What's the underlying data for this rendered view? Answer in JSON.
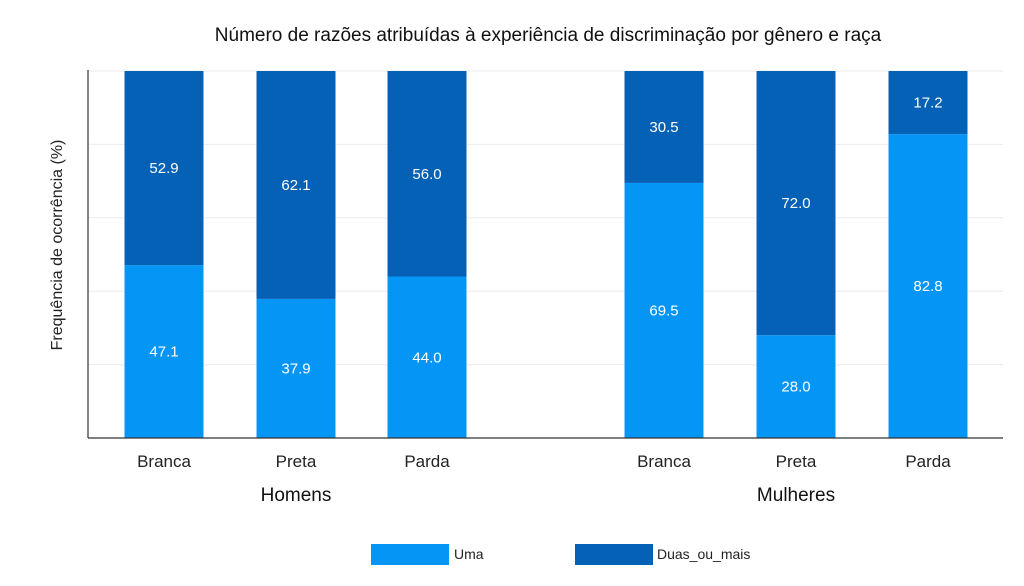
{
  "chart_data": {
    "type": "bar",
    "stacked": true,
    "title": "Número de razões atribuídas à experiência de discriminação por gênero e raça",
    "ylabel": "Frequência de ocorrência (%)",
    "xlabel": "",
    "ylim": [
      0,
      100
    ],
    "grid": true,
    "legend_position": "bottom",
    "groups": [
      "Homens",
      "Mulheres"
    ],
    "categories": [
      {
        "label": "Branca",
        "group": 0
      },
      {
        "label": "Preta",
        "group": 0
      },
      {
        "label": "Parda",
        "group": 0
      },
      {
        "label": "Branca",
        "group": 1
      },
      {
        "label": "Preta",
        "group": 1
      },
      {
        "label": "Parda",
        "group": 1
      }
    ],
    "series": [
      {
        "name": "Uma",
        "color": "#0596f5",
        "values": [
          47.1,
          37.9,
          44.0,
          69.5,
          28.0,
          82.8
        ],
        "labels": [
          "47.1",
          "37.9",
          "44.0",
          "69.5",
          "28.0",
          "82.8"
        ]
      },
      {
        "name": "Duas_ou_mais",
        "color": "#0561b5",
        "values": [
          52.9,
          62.1,
          56.0,
          30.5,
          72.0,
          17.2
        ],
        "labels": [
          "52.9",
          "62.1",
          "56.0",
          "30.5",
          "72.0",
          "17.2"
        ]
      }
    ]
  }
}
